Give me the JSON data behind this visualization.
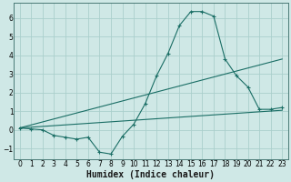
{
  "xlabel": "Humidex (Indice chaleur)",
  "bg_color": "#cfe8e6",
  "grid_color": "#aacfcc",
  "line_color": "#1a6e65",
  "xlim": [
    -0.5,
    23.5
  ],
  "ylim": [
    -1.6,
    6.8
  ],
  "xticks": [
    0,
    1,
    2,
    3,
    4,
    5,
    6,
    7,
    8,
    9,
    10,
    11,
    12,
    13,
    14,
    15,
    16,
    17,
    18,
    19,
    20,
    21,
    22,
    23
  ],
  "yticks": [
    -1,
    0,
    1,
    2,
    3,
    4,
    5,
    6
  ],
  "series0_x": [
    0,
    1,
    2,
    3,
    4,
    5,
    6,
    7,
    8,
    9,
    10,
    11,
    12,
    13,
    14,
    15,
    16,
    17,
    18,
    19,
    20,
    21,
    22,
    23
  ],
  "series0_y": [
    0.1,
    0.05,
    0.0,
    -0.3,
    -0.4,
    -0.5,
    -0.4,
    -1.2,
    -1.3,
    -0.35,
    0.3,
    1.4,
    2.9,
    4.1,
    5.6,
    6.35,
    6.35,
    6.1,
    3.8,
    2.9,
    2.3,
    1.1,
    1.1,
    1.2
  ],
  "series1_x": [
    0,
    23
  ],
  "series1_y": [
    0.1,
    3.8
  ],
  "series2_x": [
    0,
    23
  ],
  "series2_y": [
    0.1,
    1.05
  ],
  "fontsize_xlabel": 7,
  "fontsize_ticks": 5.5
}
